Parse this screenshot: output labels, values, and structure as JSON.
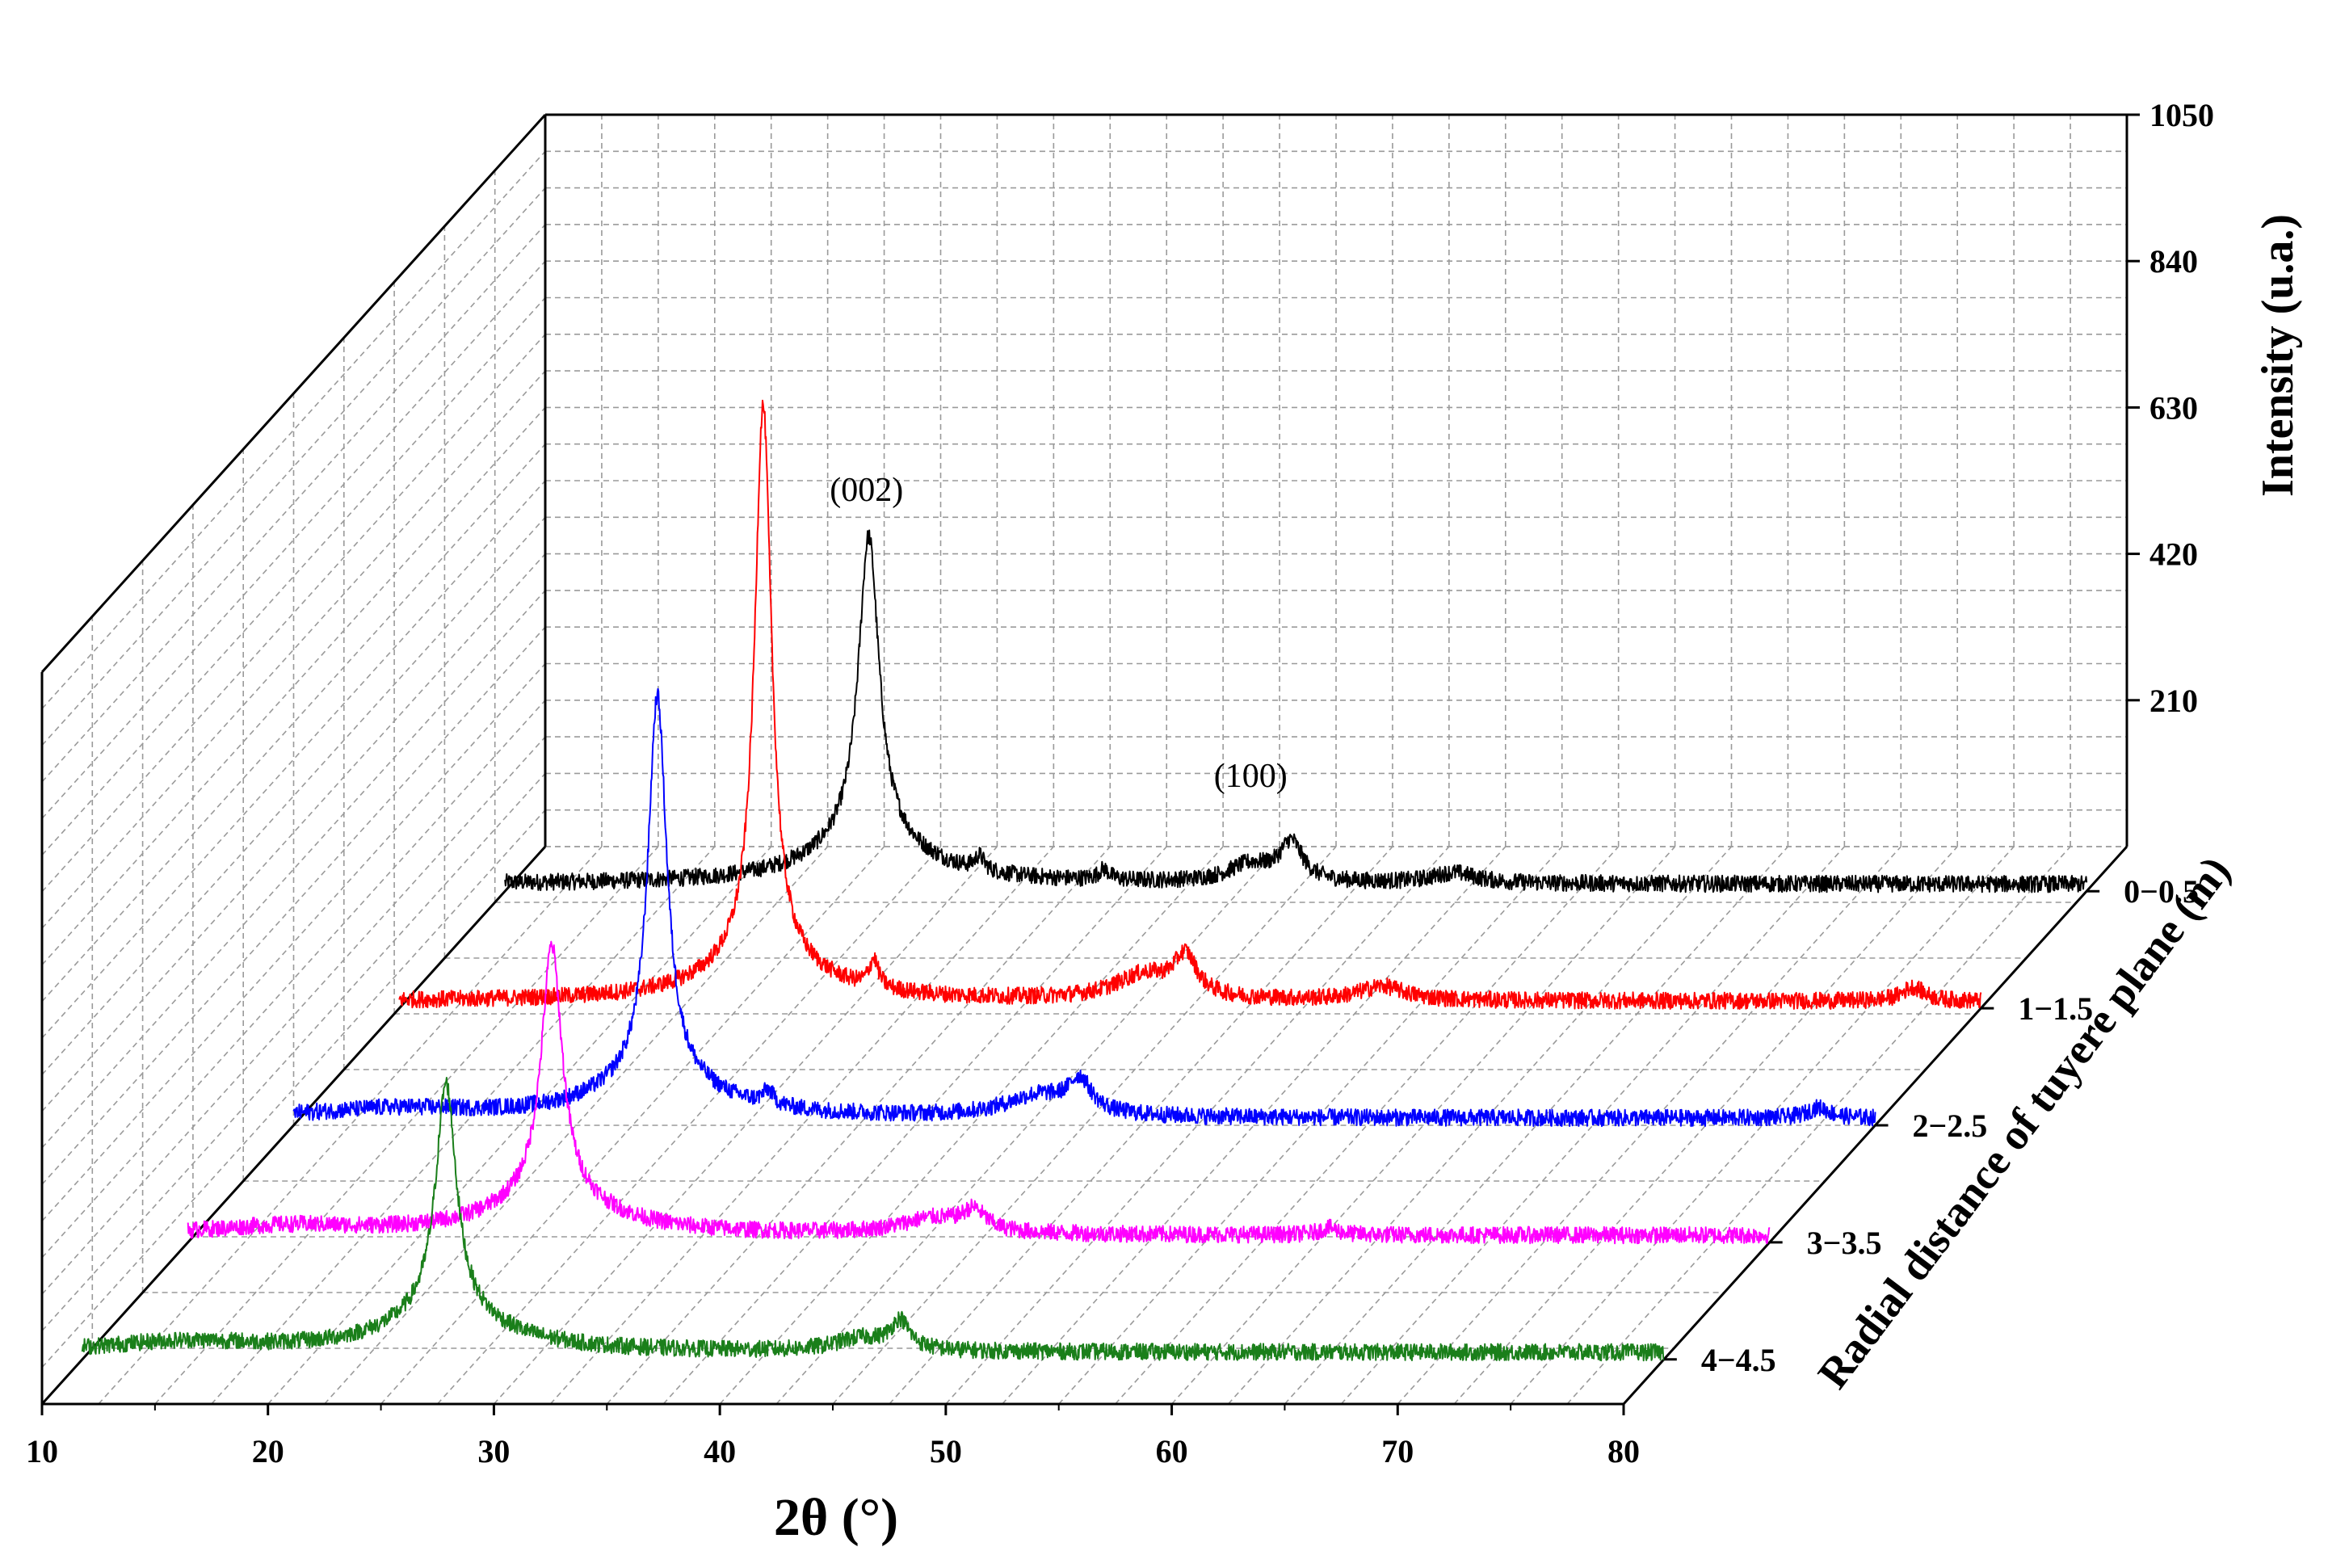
{
  "chart_data": {
    "type": "line",
    "style": "3d-waterfall",
    "title": "",
    "xlabel": "2θ (°)",
    "ylabel": "Intensity (u.a.)",
    "zlabel": "Radial distance of tuyere plane (m)",
    "xlim": [
      10,
      80
    ],
    "ylim": [
      0,
      1050
    ],
    "x_ticks": [
      "10",
      "20",
      "30",
      "40",
      "50",
      "60",
      "70",
      "80"
    ],
    "y_ticks": [
      "210",
      "420",
      "630",
      "840",
      "1050"
    ],
    "z_ticks": [
      "4−4.5",
      "3−3.5",
      "2−2.5",
      "1−1.5",
      "0−0.5"
    ],
    "annotations": [
      {
        "text": "(002)",
        "x": 26,
        "y": 560,
        "series": "0−0.5"
      },
      {
        "text": "(100)",
        "x": 43,
        "y": 150,
        "series": "0−0.5"
      }
    ],
    "grid": true,
    "series": [
      {
        "name": "4−4.5",
        "color": "#1a7f1a",
        "baseline": 10,
        "noise": 12,
        "peaks": [
          [
            26.1,
            330,
            0.55
          ],
          [
            26.1,
            55,
            3.0
          ],
          [
            44.5,
            18,
            1.4
          ],
          [
            46.2,
            40,
            0.5
          ],
          [
            14.5,
            14,
            4.0
          ]
        ]
      },
      {
        "name": "3−3.5",
        "color": "#ff00ff",
        "baseline": 10,
        "noise": 12,
        "peaks": [
          [
            26.1,
            360,
            0.55
          ],
          [
            26.1,
            55,
            3.0
          ],
          [
            43.0,
            22,
            1.8
          ],
          [
            44.8,
            28,
            0.6
          ],
          [
            14.5,
            12,
            4.0
          ],
          [
            60.5,
            10,
            0.5
          ]
        ]
      },
      {
        "name": "2−2.5",
        "color": "#0000ff",
        "baseline": 10,
        "noise": 12,
        "peaks": [
          [
            26.1,
            550,
            0.5
          ],
          [
            26.1,
            55,
            3.0
          ],
          [
            43.0,
            30,
            1.8
          ],
          [
            44.8,
            45,
            0.6
          ],
          [
            31.0,
            20,
            0.3
          ],
          [
            14.5,
            12,
            4.0
          ],
          [
            77.5,
            15,
            0.6
          ]
        ]
      },
      {
        "name": "1−1.5",
        "color": "#ff0000",
        "baseline": 10,
        "noise": 12,
        "peaks": [
          [
            26.1,
            800,
            0.45
          ],
          [
            26.1,
            55,
            3.0
          ],
          [
            43.0,
            35,
            1.6
          ],
          [
            44.8,
            55,
            0.6
          ],
          [
            31.0,
            40,
            0.25
          ],
          [
            53.5,
            20,
            1.2
          ],
          [
            77.0,
            20,
            0.6
          ]
        ]
      },
      {
        "name": "0−0.5",
        "color": "#000000",
        "baseline": 10,
        "noise": 12,
        "peaks": [
          [
            26.1,
            440,
            0.55
          ],
          [
            26.1,
            60,
            3.0
          ],
          [
            43.0,
            25,
            1.2
          ],
          [
            44.8,
            55,
            0.6
          ],
          [
            31.0,
            20,
            0.25
          ],
          [
            36.5,
            15,
            0.3
          ],
          [
            52.0,
            15,
            1.2
          ]
        ]
      }
    ]
  }
}
